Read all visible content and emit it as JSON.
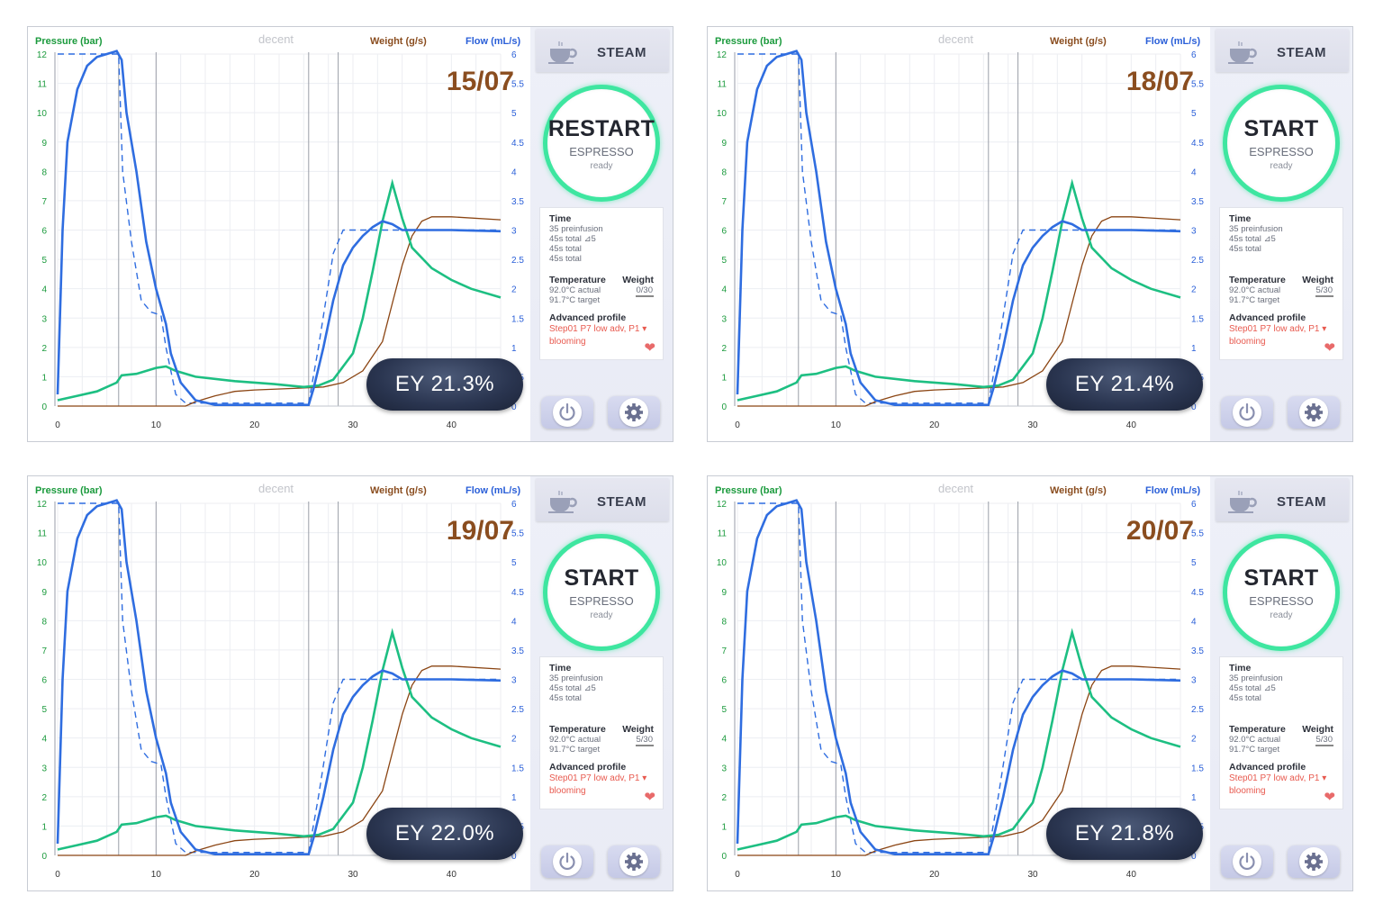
{
  "labels": {
    "pressure": "Pressure (bar)",
    "weight": "Weight (g/s)",
    "flow": "Flow (mL/s)",
    "brand": "decent",
    "steam": "STEAM",
    "espresso": "ESPRESSO",
    "ready": "ready",
    "time_heading": "Time",
    "temperature_heading": "Temperature",
    "weight_heading": "Weight",
    "temp_actual": "92.0°C actual",
    "temp_target": "91.7°C target",
    "adv_heading": "Advanced profile",
    "profile_line1": "Step01 P7 low adv, P1 ▾",
    "profile_line2": "blooming"
  },
  "axes": {
    "pressure_ticks": [
      "0",
      "1",
      "2",
      "3",
      "4",
      "5",
      "6",
      "7",
      "8",
      "9",
      "10",
      "11",
      "12"
    ],
    "flow_ticks": [
      "0",
      "0.5",
      "1",
      "1.5",
      "2",
      "2.5",
      "3",
      "3.5",
      "4",
      "4.5",
      "5",
      "5.5",
      "6"
    ],
    "x_ticks": [
      "0",
      "10",
      "20",
      "30",
      "40"
    ]
  },
  "colors": {
    "pressure": "#1dbf82",
    "flow": "#2f6de0",
    "weight": "#8b4513",
    "ring": "#3ee6a0"
  },
  "panels": [
    {
      "date": "15/07",
      "ey": "EY 21.3%",
      "button": "RESTART",
      "time_lines": [
        "35 preinfusion",
        "45s total ⊿5",
        "45s total",
        "45s total"
      ],
      "weight_value": "0/30"
    },
    {
      "date": "18/07",
      "ey": "EY 21.4%",
      "button": "START",
      "time_lines": [
        "35 preinfusion",
        "45s total ⊿5",
        "45s total"
      ],
      "weight_value": "5/30"
    },
    {
      "date": "19/07",
      "ey": "EY 22.0%",
      "button": "START",
      "time_lines": [
        "35 preinfusion",
        "45s total ⊿5",
        "45s total"
      ],
      "weight_value": "5/30"
    },
    {
      "date": "20/07",
      "ey": "EY 21.8%",
      "button": "START",
      "time_lines": [
        "35 preinfusion",
        "45s total ⊿5",
        "45s total"
      ],
      "weight_value": "5/30"
    }
  ]
}
